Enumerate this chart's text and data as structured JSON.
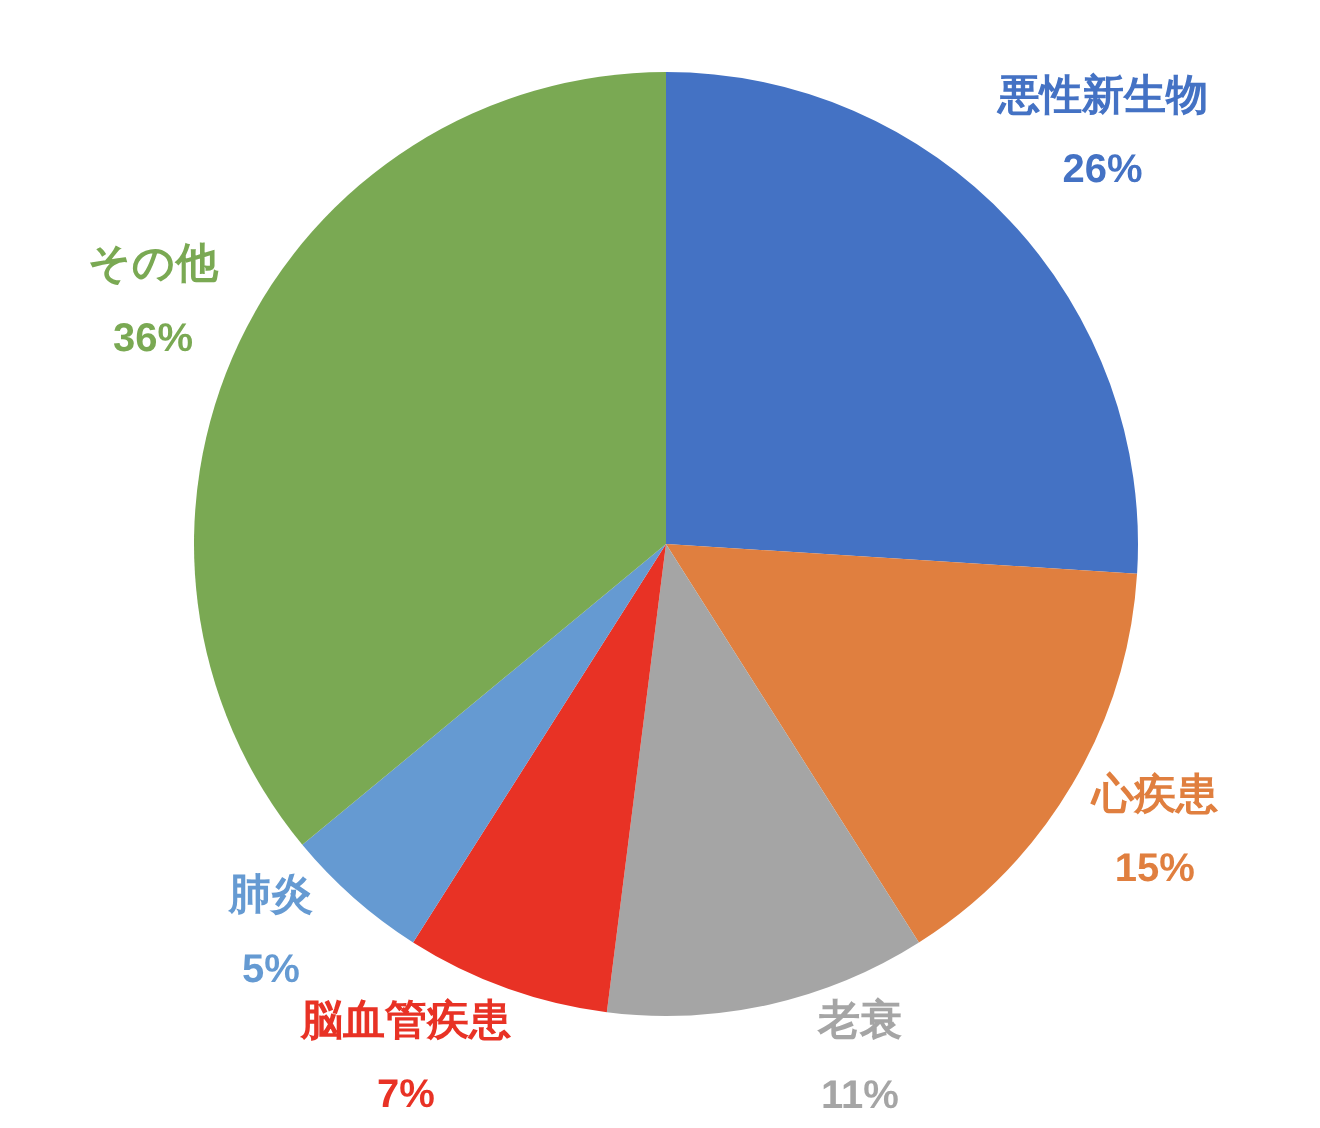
{
  "chart_data": {
    "type": "pie",
    "categories": [
      "悪性新生物",
      "心疾患",
      "老衰",
      "脳血管疾患",
      "肺炎",
      "その他"
    ],
    "values": [
      26,
      15,
      11,
      7,
      5,
      36
    ],
    "colors": [
      "#4472c4",
      "#e07f3f",
      "#a5a5a5",
      "#e83225",
      "#659ad2",
      "#7aa953"
    ],
    "value_labels": [
      "26%",
      "15%",
      "11%",
      "7%",
      "5%",
      "36%"
    ]
  }
}
